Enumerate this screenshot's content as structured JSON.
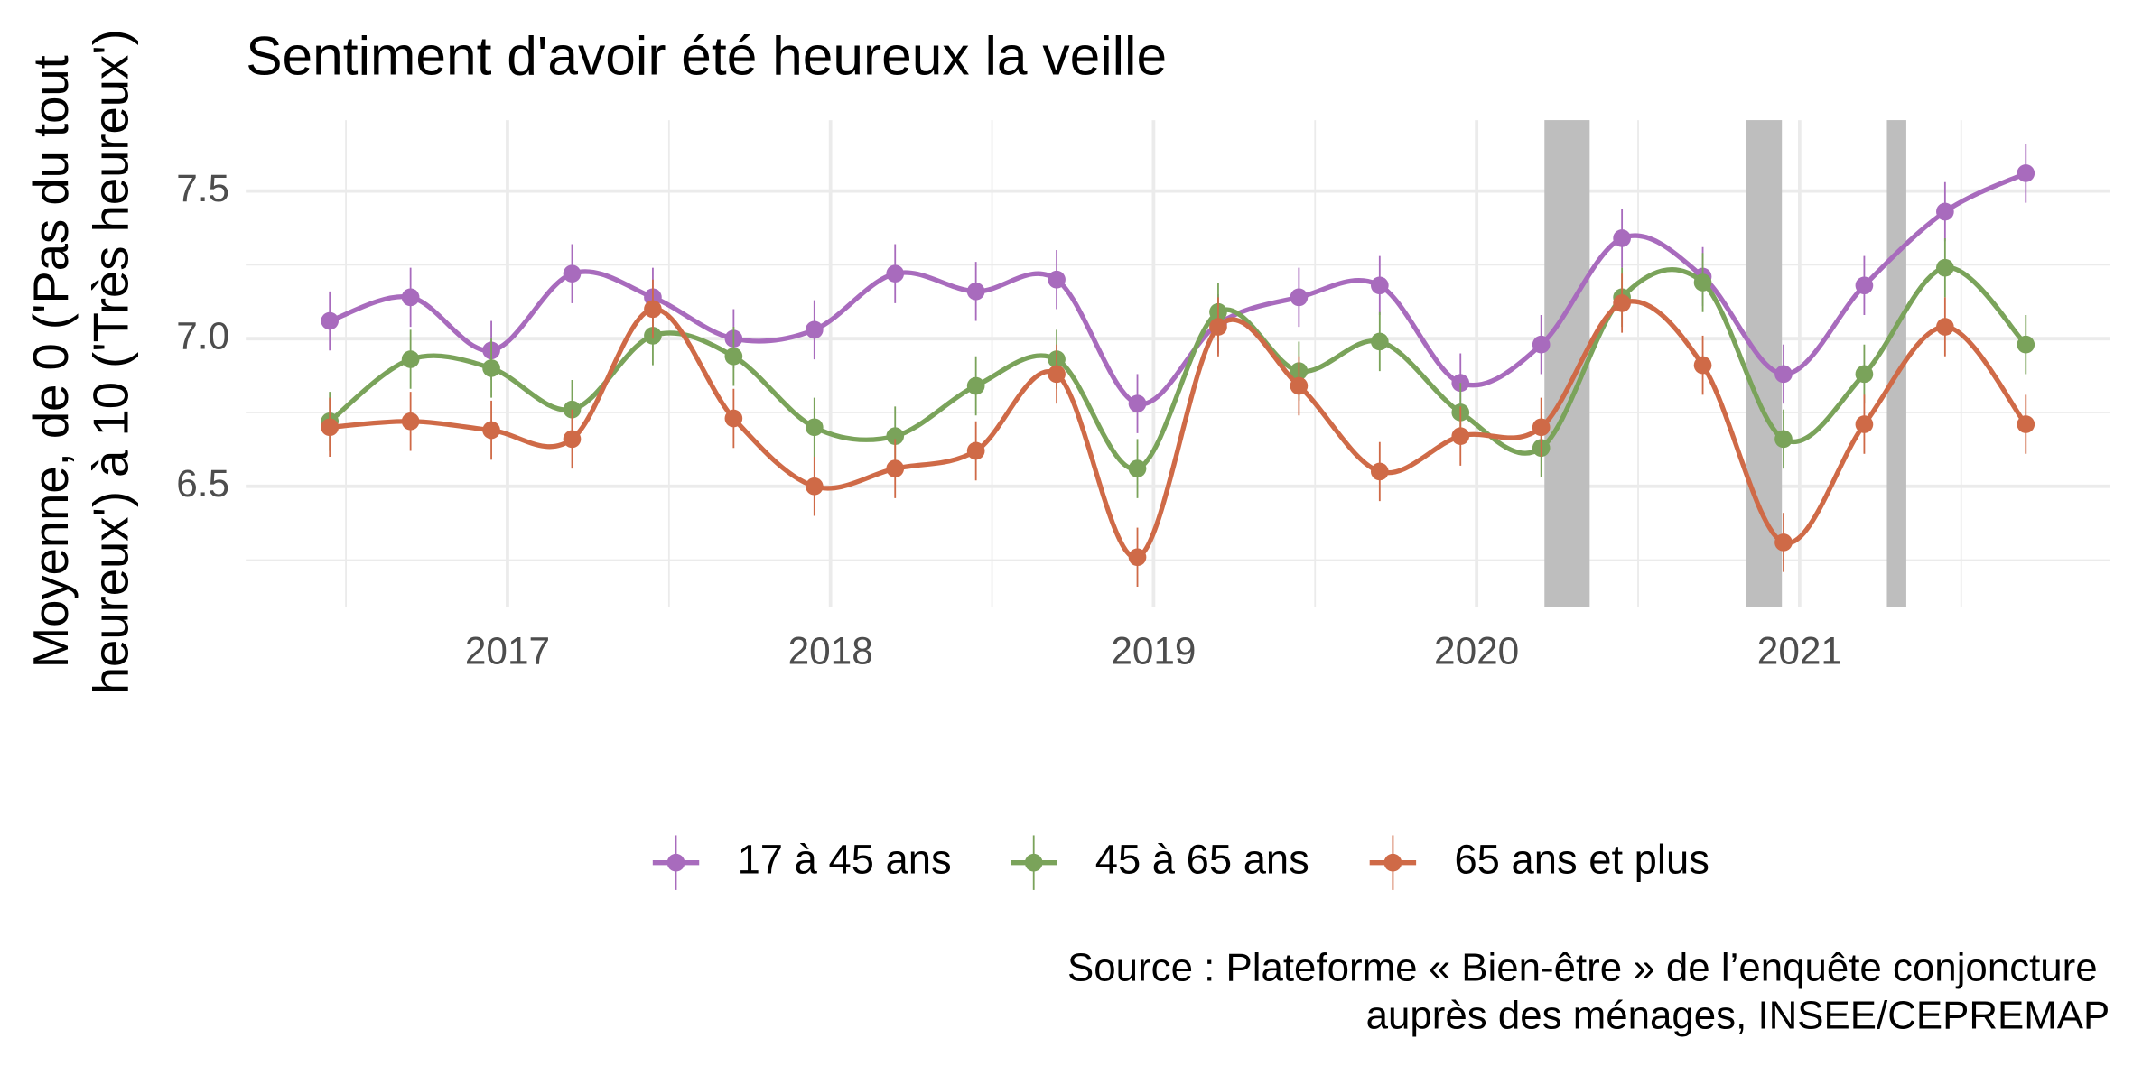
{
  "chart_data": {
    "type": "line",
    "title": "Sentiment d'avoir été heureux la veille",
    "y_label": [
      "Moyenne, de 0 ('Pas du tout",
      "heureux') à 10 ('Très heureux')"
    ],
    "caption": [
      "Source : Plateforme « Bien-être » de l’enquête conjoncture",
      "auprès des ménages, INSEE/CEPREMAP"
    ],
    "x": [
      2016.45,
      2016.7,
      2016.95,
      2017.2,
      2017.45,
      2017.7,
      2017.95,
      2018.2,
      2018.45,
      2018.7,
      2018.95,
      2019.2,
      2019.45,
      2019.7,
      2019.95,
      2020.2,
      2020.45,
      2020.7,
      2020.95,
      2021.2,
      2021.45,
      2021.7
    ],
    "series": [
      {
        "name": "17 à 45 ans",
        "color": "#a86bbd",
        "error": 0.1,
        "values": [
          7.06,
          7.14,
          6.96,
          7.22,
          7.14,
          7.0,
          7.03,
          7.22,
          7.16,
          7.2,
          6.78,
          7.05,
          7.14,
          7.18,
          6.85,
          6.98,
          7.34,
          7.21,
          6.88,
          7.18,
          7.43,
          7.56
        ]
      },
      {
        "name": "45 à 65 ans",
        "color": "#7aa35a",
        "error": 0.1,
        "values": [
          6.72,
          6.93,
          6.9,
          6.76,
          7.01,
          6.94,
          6.7,
          6.67,
          6.84,
          6.93,
          6.56,
          7.09,
          6.89,
          6.99,
          6.75,
          6.63,
          7.14,
          7.19,
          6.66,
          6.88,
          7.24,
          6.98
        ]
      },
      {
        "name": "65 ans et plus",
        "color": "#cf6a47",
        "error": 0.1,
        "values": [
          6.7,
          6.72,
          6.69,
          6.66,
          7.1,
          6.73,
          6.5,
          6.56,
          6.62,
          6.88,
          6.26,
          7.04,
          6.84,
          6.55,
          6.67,
          6.7,
          7.12,
          6.91,
          6.31,
          6.71,
          7.04,
          6.71
        ]
      }
    ],
    "shaded_periods": [
      [
        2020.21,
        2020.35
      ],
      [
        2020.835,
        2020.945
      ],
      [
        2021.27,
        2021.33
      ]
    ],
    "shaded_color": "#bebebe",
    "xlim": [
      2016.19,
      2021.96
    ],
    "xticks": [
      2017,
      2018,
      2019,
      2020,
      2021
    ],
    "x_minor_ticks": [
      2016.5,
      2017.5,
      2018.5,
      2019.5,
      2020.5,
      2021.5
    ],
    "ylim": [
      6.09,
      7.74
    ],
    "yticks": [
      {
        "value": 6.5,
        "label": "6.5"
      },
      {
        "value": 7.0,
        "label": "7.0"
      },
      {
        "value": 7.5,
        "label": "7.5"
      }
    ],
    "y_minor_ticks": [
      6.25,
      6.75,
      7.25
    ],
    "grid": true,
    "legend": "bottom"
  }
}
